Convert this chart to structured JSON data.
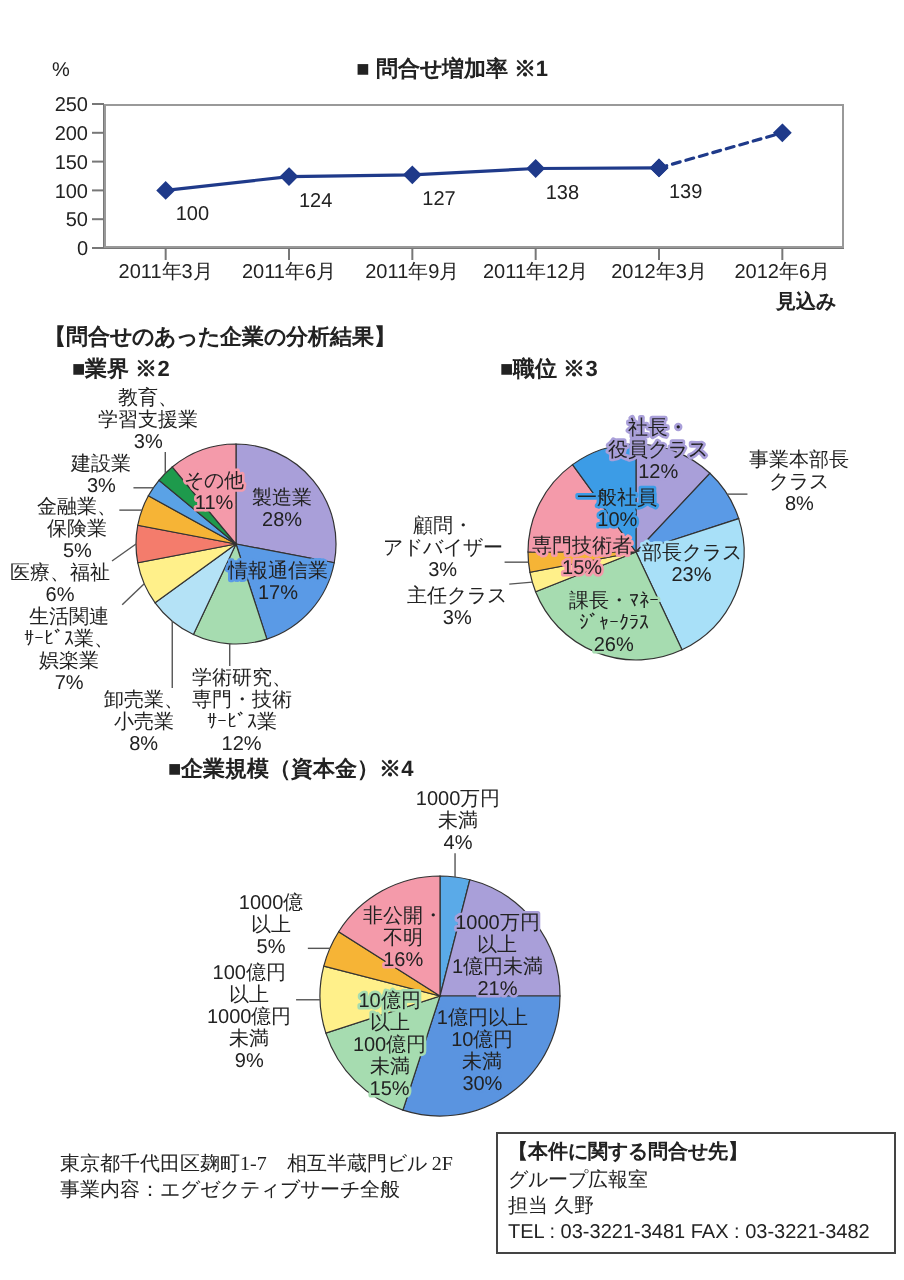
{
  "chart_data": [
    {
      "type": "line",
      "title": "■ 問合せ増加率 ※1",
      "ylabel": "%",
      "categories": [
        "2011年3月",
        "2011年6月",
        "2011年9月",
        "2011年12月",
        "2012年3月",
        "2012年6月"
      ],
      "series": [
        {
          "color": "#1f3a8a",
          "values": [
            100,
            124,
            127,
            138,
            139,
            null
          ],
          "value_labels": [
            "100",
            "124",
            "127",
            "138",
            "139",
            null
          ]
        },
        {
          "color": "#1f3a8a",
          "line_style": "dashed",
          "values": [
            null,
            null,
            null,
            null,
            139,
            200
          ]
        }
      ],
      "ylim": [
        0,
        250
      ],
      "yticks": [
        0,
        50,
        100,
        150,
        200,
        250
      ],
      "marker": "diamond",
      "line_style": "solid",
      "annotations": [
        "見込み"
      ]
    },
    {
      "type": "other",
      "title": "【問合せのあった企業の分析結果】"
    },
    {
      "type": "pie",
      "title": "■業界 ※2",
      "categories": [
        "製造業",
        "情報通信業",
        "学術研究、専門・技術ｻｰﾋﾞｽ業",
        "卸売業、小売業",
        "生活関連ｻｰﾋﾞｽ業、娯楽業",
        "医療、福祉",
        "金融業、保険業",
        "建設業",
        "教育、学習支援業",
        "その他"
      ],
      "values": [
        28,
        17,
        12,
        8,
        7,
        6,
        5,
        3,
        3,
        11
      ],
      "value_labels": [
        "28%",
        "17%",
        "12%",
        "8%",
        "7%",
        "6%",
        "5%",
        "3%",
        "3%",
        "11%"
      ],
      "colors": [
        "#a99fd9",
        "#5a9ae6",
        "#a6dcb0",
        "#b4e2f6",
        "#fff08a",
        "#f47c6c",
        "#f6b436",
        "#5aa2e6",
        "#1e9a4c",
        "#f49aaa"
      ]
    },
    {
      "type": "pie",
      "title": "■職位 ※3",
      "categories": [
        "社長・役員クラス",
        "事業本部長クラス",
        "部長クラス",
        "課長・ﾏﾈｰｼﾞｬｰｸﾗｽ",
        "主任クラス",
        "顧問・アドバイザー",
        "専門技術者",
        "一般社員"
      ],
      "values": [
        12,
        8,
        23,
        26,
        3,
        3,
        15,
        10
      ],
      "value_labels": [
        "12%",
        "8%",
        "23%",
        "26%",
        "3%",
        "3%",
        "15%",
        "10%"
      ],
      "colors": [
        "#a99fd9",
        "#5a9ae6",
        "#a8e0f8",
        "#a6dcb0",
        "#fff08a",
        "#f6b436",
        "#f49aaa",
        "#3c9ce6"
      ]
    },
    {
      "type": "pie",
      "title": "■企業規模（資本金）※4",
      "categories": [
        "1000万円未満",
        "1000万円以上1億円未満",
        "1億円以上10億円未満",
        "10億円以上100億円未満",
        "100億円以上1000億円未満",
        "1000億以上",
        "非公開・不明"
      ],
      "values": [
        4,
        21,
        30,
        15,
        9,
        5,
        16
      ],
      "value_labels": [
        "4%",
        "21%",
        "30%",
        "15%",
        "9%",
        "5%",
        "16%"
      ],
      "colors": [
        "#5aaae8",
        "#a99fd9",
        "#5a94e0",
        "#a6dcb0",
        "#fff08a",
        "#f6b436",
        "#f49aaa"
      ]
    },
    {
      "type": "other",
      "annotations": [
        "東京都千代田区麹町1-7　相互半蔵門ビル 2F",
        "事業内容：エグゼクティブサーチ全般"
      ]
    },
    {
      "type": "other",
      "title": "【本件に関する問合せ先】",
      "annotations": [
        "グループ広報室",
        "担当 久野",
        "TEL : 03-3221-3481   FAX : 03-3221-3482"
      ]
    }
  ]
}
